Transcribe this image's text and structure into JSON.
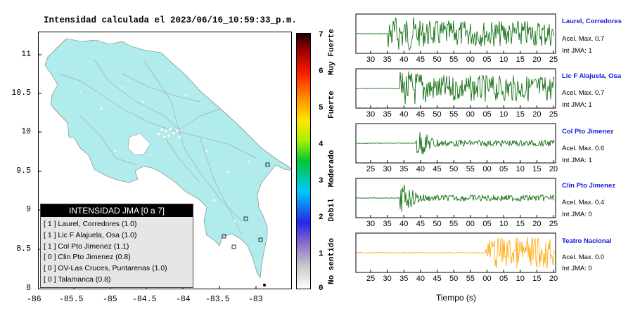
{
  "map": {
    "title": "Intensidad calculada el 2023/06/16_10:59:33_p.m.",
    "x_ticks": [
      "-86",
      "-85.5",
      "-85",
      "-84.5",
      "-84",
      "-83.5",
      "-83"
    ],
    "y_ticks": [
      "11",
      "10.5",
      "10",
      "9.5",
      "9",
      "8.5",
      "8"
    ],
    "land_color": "#b0ecec",
    "sea_color": "#ffffff"
  },
  "colorbar": {
    "ticks": [
      "7",
      "6",
      "5",
      "4",
      "3",
      "2",
      "1",
      "0"
    ],
    "descriptors": [
      "Muy Fuerte",
      "Fuerte",
      "Moderado",
      "Debil",
      "No sentido"
    ]
  },
  "legend": {
    "title": "INTENSIDAD JMA [0 a 7]",
    "rows": [
      "[ 1 ]  Laurel, Corredores (1.0)",
      "[ 1 ]  Lic F Alajuela, Osa (1.0)",
      "[ 1 ]  Col Pto Jimenez (1.1)",
      "[ 0 ]  Clin Pto Jimenez (0.8)",
      "[ 0 ]  OV-Las Cruces, Puntarenas (1.0)",
      "[ 0 ]  Talamanca (0.8)"
    ]
  },
  "traces": [
    {
      "name": "Laurel, Corredores",
      "acel": "Acel. Max. 0.7",
      "jma": "Int JMA: 1",
      "color": "#006400",
      "ticks": [
        "30",
        "35",
        "40",
        "45",
        "50",
        "55",
        "00",
        "05",
        "10",
        "15",
        "20",
        "25"
      ],
      "onset": 0.16
    },
    {
      "name": "Lic F Alajuela, Osa",
      "acel": "Acel. Max. 0.7",
      "jma": "Int JMA: 1",
      "color": "#006400",
      "ticks": [
        "30",
        "35",
        "40",
        "45",
        "50",
        "55",
        "00",
        "05",
        "10",
        "15",
        "20",
        "25"
      ],
      "onset": 0.22
    },
    {
      "name": "Col Pto Jimenez",
      "acel": "Acel. Max. 0.6",
      "jma": "Int JMA: 1",
      "color": "#006400",
      "ticks": [
        "25",
        "30",
        "35",
        "40",
        "45",
        "50",
        "55",
        "00",
        "05",
        "10",
        "15",
        "20"
      ],
      "onset": 0.3
    },
    {
      "name": "Clin Pto Jimenez",
      "acel": "Acel. Max. 0.4",
      "jma": "Int JMA: 0",
      "color": "#006400",
      "ticks": [
        "30",
        "35",
        "40",
        "45",
        "50",
        "55",
        "00",
        "05",
        "10",
        "15",
        "20",
        "25"
      ],
      "onset": 0.22
    },
    {
      "name": "Teatro Nacional",
      "acel": "Acel. Max. 0.0",
      "jma": "Int JMA: 0",
      "color": "#ffa500",
      "ticks": [
        "25",
        "30",
        "35",
        "40",
        "45",
        "50",
        "55",
        "00",
        "05",
        "10",
        "15",
        "20"
      ],
      "onset": 0.65
    }
  ],
  "xlabel": "Tiempo (s)"
}
